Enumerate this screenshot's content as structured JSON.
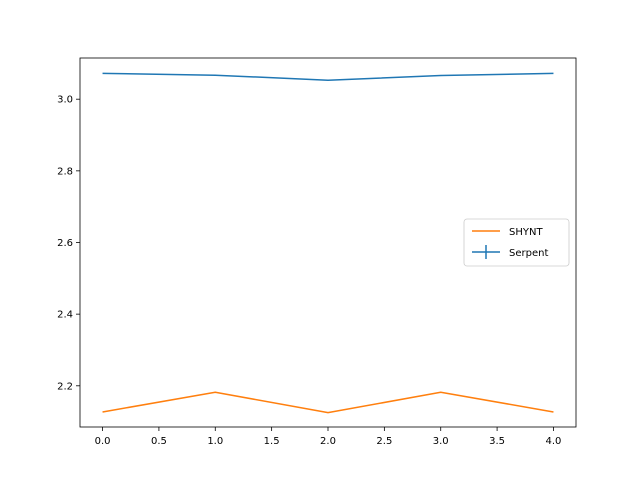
{
  "chart_data": {
    "type": "line",
    "title": "",
    "xlabel": "",
    "ylabel": "",
    "xlim": [
      -0.2,
      4.2
    ],
    "ylim": [
      2.085,
      3.115
    ],
    "x_ticks": [
      0.0,
      0.5,
      1.0,
      1.5,
      2.0,
      2.5,
      3.0,
      3.5,
      4.0
    ],
    "x_tick_labels": [
      "0.0",
      "0.5",
      "1.0",
      "1.5",
      "2.0",
      "2.5",
      "3.0",
      "3.5",
      "4.0"
    ],
    "y_ticks": [
      2.2,
      2.4,
      2.6,
      2.8,
      3.0
    ],
    "y_tick_labels": [
      "2.2",
      "2.4",
      "2.6",
      "2.8",
      "3.0"
    ],
    "grid": false,
    "legend_position": "center-right",
    "series": [
      {
        "name": "SHYNT",
        "color": "#ff7f0e",
        "x": [
          0,
          1,
          2,
          3,
          4
        ],
        "y": [
          2.127,
          2.182,
          2.125,
          2.182,
          2.127
        ],
        "errorbar": false
      },
      {
        "name": "Serpent",
        "color": "#1f77b4",
        "x": [
          0,
          1,
          2,
          3,
          4
        ],
        "y": [
          3.072,
          3.067,
          3.053,
          3.066,
          3.072
        ],
        "errorbar": true
      }
    ]
  }
}
